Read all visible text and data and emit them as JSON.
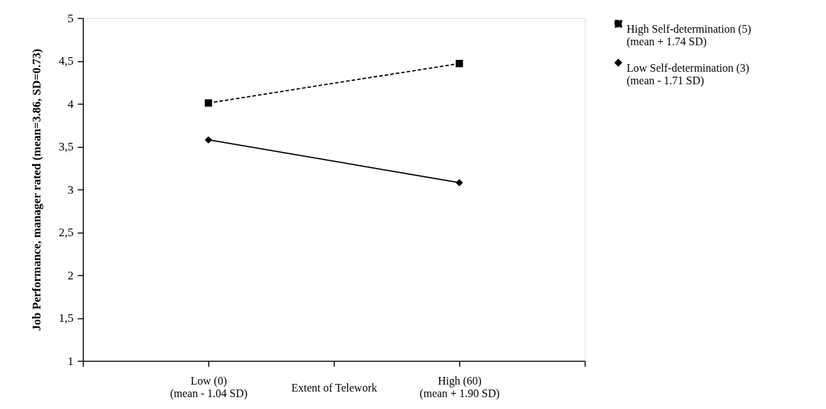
{
  "chart_data": {
    "type": "line",
    "xlabel": "Extent of Telework",
    "ylabel": "Job Performance, manager rated (mean=3.86, SD=0.73)",
    "categories": [
      null,
      "Low (0)\n(mean - 1.04 SD)",
      null,
      "High (60)\n(mean + 1.90 SD)",
      null
    ],
    "ylim": [
      1,
      5
    ],
    "yticks": [
      {
        "value": 1,
        "label": "1"
      },
      {
        "value": 1.5,
        "label": "1,5"
      },
      {
        "value": 2,
        "label": "2"
      },
      {
        "value": 2.5,
        "label": "2,5"
      },
      {
        "value": 3,
        "label": "3"
      },
      {
        "value": 3.5,
        "label": "3,5"
      },
      {
        "value": 4,
        "label": "4"
      },
      {
        "value": 4.5,
        "label": "4,5"
      },
      {
        "value": 5,
        "label": "5"
      }
    ],
    "series": [
      {
        "name": "High Self-determination (5)\n(mean + 1.74 SD)",
        "color": "#000000",
        "values": [
          null,
          4.01,
          null,
          4.47,
          null
        ],
        "marker": "square",
        "line_style": "dashed"
      },
      {
        "name": "Low Self-determination (3)\n(mean - 1.71 SD)",
        "color": "#000000",
        "values": [
          null,
          3.58,
          null,
          3.08,
          null
        ],
        "marker": "diamond",
        "line_style": "solid"
      }
    ],
    "grid": false,
    "legend": "right"
  }
}
